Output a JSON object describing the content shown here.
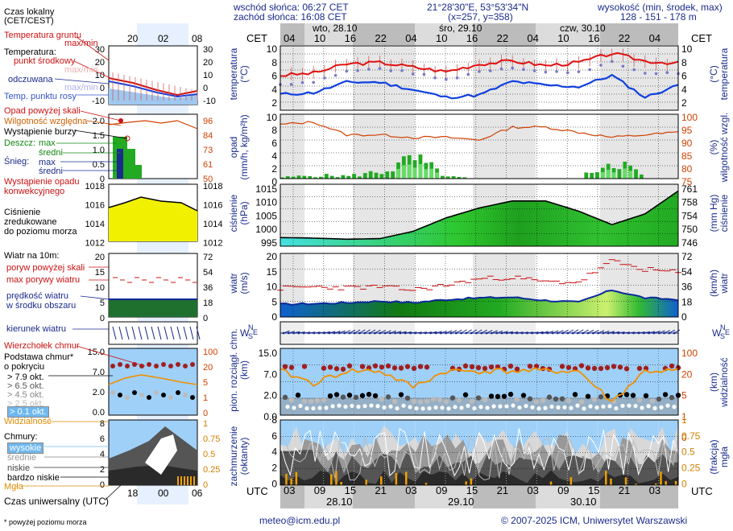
{
  "header": {
    "sunrise": "wschód słońca: 06:27 CET",
    "sunset": "zachód słońca: 16:08 CET",
    "coords": "21°28'30\"E, 53°53'34\"N",
    "grid": "(x=257,  y=358)",
    "altitude_label": "wysokość (min, środek, max)",
    "altitude_values": "128 - 151 - 178 m",
    "cet": "CET",
    "utc": "UTC"
  },
  "days_top": [
    "wto, 28.10",
    "śro, 29.10",
    "czw, 30.10"
  ],
  "hours_top": [
    "04",
    "10",
    "16",
    "22",
    "04",
    "10",
    "16",
    "22",
    "04",
    "10",
    "16",
    "22",
    "04"
  ],
  "hours_bottom": [
    "03",
    "09",
    "15",
    "21",
    "03",
    "09",
    "15",
    "21",
    "03",
    "09",
    "15",
    "21",
    "03"
  ],
  "dates_bottom": [
    "28.10",
    "29.10",
    "30.10"
  ],
  "legend": {
    "local_time": "Czas lokalny",
    "local_time2": "(CET/CEST)",
    "local_ticks": [
      "20",
      "02",
      "08"
    ],
    "utc_label": "Czas uniwersalny (UTC)",
    "utc_ticks": [
      "18",
      "00",
      "06"
    ],
    "ground_temp": "Temperatura gruntu",
    "ground_temp2": "max/min",
    "temperature": "Temperatura:",
    "mid_point": "punkt środkowy",
    "max_min": "max/min",
    "felt": "odczuwana",
    "felt_mm": "max/min",
    "dew_point": "Temp. punktu rosy",
    "rain_over": "Opad powyżej skali",
    "humidity": "Wilgotność względna",
    "storm": "Wystąpienie burzy",
    "rain": "Deszcz:",
    "rain_max": "max",
    "rain_avg": "średni",
    "snow": "Śnieg:",
    "snow_max": "max",
    "snow_avg": "średni",
    "conv1": "Wystąpienie opadu",
    "conv2": "konwekcyjnego",
    "pressure1": "Ciśnienie",
    "pressure2": "zredukowane",
    "pressure3": "do poziomu morza",
    "wind": "Wiatr na 10m:",
    "gust_over": "poryw powyżej skali",
    "gust_max": "max porywy wiatru",
    "wind_speed1": "prędkość wiatru",
    "wind_speed2": "w środku obszaru",
    "wind_dir": "kierunek wiatru",
    "cloud_top": "Wierzchołek chmur",
    "cloud_base1": "Podstawa chmur*",
    "cloud_base2": "o pokryciu",
    "okt79": "> 7.9 okt.",
    "okt65": "> 6.5 okt.",
    "okt45": "> 4.5 okt.",
    "okt25": "> 2.5 okt.",
    "okt01": "> 0.1 okt.",
    "visibility": "Widzialność",
    "clouds": "Chmury:",
    "high": "wysokie",
    "mid": "średnie",
    "low": "niskie",
    "very_low": "bardzo niskie",
    "fog": "Mgła",
    "footnote": "* powyżej poziomu morza"
  },
  "axis_labels": {
    "temp_left": "temperatura\n(°C)",
    "temp_right": "(°C)\ntemperatura",
    "rain_left": "opad\n(mm/h, kg/m²h)",
    "rain_right": "(%)\nwilgotność wzgl.",
    "press_left": "ciśnienie\n(hPa)",
    "press_right": "(mm Hg)\nciśnienie",
    "wind_left": "wiatr\n(m/s)",
    "wind_right": "(km/h)\nwiatr",
    "cloud_left": "pion. rozciągł. chm.\n(km)",
    "cloud_right": "(km)\nwidzialność",
    "cov_left": "zachmurzenie\n(oktanty)",
    "cov_right": "(frakcja)\nmgła"
  },
  "ticks": {
    "temp_l": [
      "10",
      "8",
      "6",
      "4",
      "2"
    ],
    "temp_r": [
      "10",
      "8",
      "6",
      "4",
      "2"
    ],
    "rain_l": [
      "10",
      "8",
      "6",
      "4",
      "2",
      "0"
    ],
    "rain_r": [
      "100",
      "95",
      "90",
      "85",
      "80",
      "75"
    ],
    "press_l": [
      "1015",
      "1010",
      "1005",
      "1000",
      "995"
    ],
    "press_r": [
      "761",
      "758",
      "754",
      "750",
      "746"
    ],
    "wind_l": [
      "20",
      "15",
      "10",
      "5",
      "0"
    ],
    "wind_r": [
      "72",
      "54",
      "36",
      "18",
      "0"
    ],
    "cloud_l": [
      "15.0",
      "7.0",
      "2.0",
      "0.0"
    ],
    "cloud_r": [
      "100",
      "20",
      "5",
      "1",
      "0"
    ],
    "cov_l": [
      "8",
      "6",
      "4",
      "2",
      "0"
    ],
    "cov_r": [
      "1",
      "0.75",
      "0.5",
      "0.25",
      "0"
    ],
    "mini_temp_l": [
      "30",
      "20",
      "10",
      "0",
      "-10"
    ],
    "mini_temp_r": [
      "30",
      "20",
      "10",
      "0",
      "-10"
    ],
    "mini_rain_l": [
      "2.0",
      "1.5",
      "1.0",
      "0.5",
      "0"
    ],
    "mini_rain_r": [
      "96",
      "84",
      "73",
      "61",
      "50"
    ],
    "mini_press_l": [
      "1018",
      "1016",
      "1014",
      "1012"
    ],
    "mini_press_r": [
      "1018",
      "1016",
      "1014",
      "1012"
    ],
    "mini_wind_l": [
      "20",
      "15",
      "10",
      "5",
      "0"
    ],
    "mini_wind_r": [
      "72",
      "54",
      "36",
      "18",
      "0"
    ],
    "mini_cloud_l": [
      "15.0",
      "7.0",
      "2.0",
      "0.0"
    ],
    "mini_cloud_r": [
      "100",
      "20",
      "5",
      "1",
      "0"
    ],
    "mini_cov_l": [
      "8",
      "6",
      "4",
      "2",
      "0"
    ],
    "mini_cov_r": [
      "1",
      "0.75",
      "0.5",
      "0.25",
      "0"
    ]
  },
  "footer": {
    "email": "meteo@icm.edu.pl",
    "copyright": "© 2007-2025 ICM, Uniwersytet Warszawski"
  },
  "colors": {
    "temp": "#e01010",
    "felt": "#7777cc",
    "dew": "#1040e0",
    "humidity": "#d04000",
    "rain": "#22aa22",
    "pressure_fill": "#33cc33",
    "pressure_cyan": "#33dddd",
    "wind_fill": "#22aa22",
    "wind_blue": "#1060d0",
    "sky": "#9fd0f8",
    "visibility": "#f09000"
  },
  "chart_data": [
    {
      "type": "line",
      "title": "temperatura",
      "x": [
        "28.10 04",
        "28.10 10",
        "28.10 16",
        "28.10 22",
        "29.10 04",
        "29.10 10",
        "29.10 16",
        "29.10 22",
        "30.10 04",
        "30.10 10",
        "30.10 16",
        "30.10 22",
        "31.10 04"
      ],
      "ylim": [
        1.5,
        10
      ],
      "series": [
        {
          "name": "punkt środkowy",
          "values": [
            6.1,
            6.4,
            7.6,
            7.8,
            7.2,
            6.6,
            7.6,
            8.0,
            7.4,
            7.8,
            9.0,
            8.0,
            7.7
          ]
        },
        {
          "name": "odczuwana",
          "values": [
            4.9,
            5.3,
            6.6,
            7.0,
            6.4,
            5.5,
            6.6,
            7.2,
            6.5,
            6.6,
            7.8,
            6.4,
            6.4
          ]
        },
        {
          "name": "Temp. punktu rosy",
          "values": [
            3.6,
            3.8,
            5.2,
            5.2,
            4.2,
            3.2,
            3.5,
            5.3,
            4.8,
            4.6,
            6.1,
            3.2,
            4.8
          ]
        }
      ]
    },
    {
      "type": "line",
      "title": "wilgotność wzgl.",
      "x": [
        "28.10 04",
        "28.10 10",
        "28.10 16",
        "28.10 22",
        "29.10 04",
        "29.10 10",
        "29.10 16",
        "29.10 22",
        "30.10 04",
        "30.10 10",
        "30.10 16",
        "30.10 22",
        "31.10 04"
      ],
      "ylim": [
        75,
        100
      ],
      "series": [
        {
          "name": "Wilgotność względna",
          "values": [
            96,
            97,
            92,
            92,
            91,
            91,
            90,
            95,
            95,
            93,
            91,
            92,
            93
          ]
        }
      ]
    },
    {
      "type": "bar",
      "title": "opad",
      "x": [
        "28.10 04",
        "28.10 10",
        "28.10 16",
        "28.10 22",
        "29.10 04",
        "29.10 10",
        "29.10 16",
        "29.10 22",
        "30.10 04",
        "30.10 10",
        "30.10 16",
        "30.10 22",
        "31.10 04"
      ],
      "ylim": [
        0,
        10
      ],
      "series": [
        {
          "name": "Deszcz",
          "values": [
            0.2,
            0.5,
            0.4,
            1.1,
            3.0,
            0.3,
            0.0,
            0.1,
            0.0,
            0.1,
            3.2,
            0.0,
            0.0
          ]
        }
      ]
    },
    {
      "type": "area",
      "title": "ciśnienie",
      "x": [
        "28.10 04",
        "28.10 10",
        "28.10 16",
        "28.10 22",
        "29.10 04",
        "29.10 10",
        "29.10 16",
        "29.10 22",
        "30.10 04",
        "30.10 10",
        "30.10 16",
        "30.10 22",
        "31.10 04"
      ],
      "ylim": [
        993,
        1016
      ],
      "series": [
        {
          "name": "Ciśnienie",
          "values": [
            996.2,
            996.0,
            995.6,
            995.8,
            998.5,
            1003.5,
            1007.2,
            1009.8,
            1009.8,
            1006.0,
            1001.0,
            1005.0,
            1013.5
          ]
        }
      ]
    },
    {
      "type": "line",
      "title": "wiatr",
      "x": [
        "28.10 04",
        "28.10 10",
        "28.10 16",
        "28.10 22",
        "29.10 04",
        "29.10 10",
        "29.10 16",
        "29.10 22",
        "30.10 04",
        "30.10 10",
        "30.10 16",
        "30.10 22",
        "31.10 04"
      ],
      "ylim": [
        0,
        20
      ],
      "series": [
        {
          "name": "max porywy wiatru",
          "values": [
            9.0,
            9.5,
            9.2,
            9.5,
            8.5,
            10.0,
            12.0,
            12.5,
            11.0,
            11.0,
            17.5,
            15.0,
            14.0
          ]
        },
        {
          "name": "prędkość wiatru",
          "values": [
            4.0,
            4.2,
            4.5,
            5.0,
            4.5,
            5.5,
            6.0,
            6.2,
            5.2,
            4.6,
            8.5,
            6.0,
            5.5
          ]
        }
      ]
    },
    {
      "type": "line",
      "title": "widzialność",
      "x": [
        "28.10 04",
        "28.10 10",
        "28.10 16",
        "28.10 22",
        "29.10 04",
        "29.10 10",
        "29.10 16",
        "29.10 22",
        "30.10 04",
        "30.10 10",
        "30.10 16",
        "30.10 22",
        "31.10 04"
      ],
      "ylim": [
        0,
        100
      ],
      "series": [
        {
          "name": "Widzialność",
          "values": [
            20,
            8,
            20,
            20,
            6,
            20,
            20,
            20,
            20,
            20,
            1.5,
            20,
            20
          ]
        }
      ]
    }
  ]
}
